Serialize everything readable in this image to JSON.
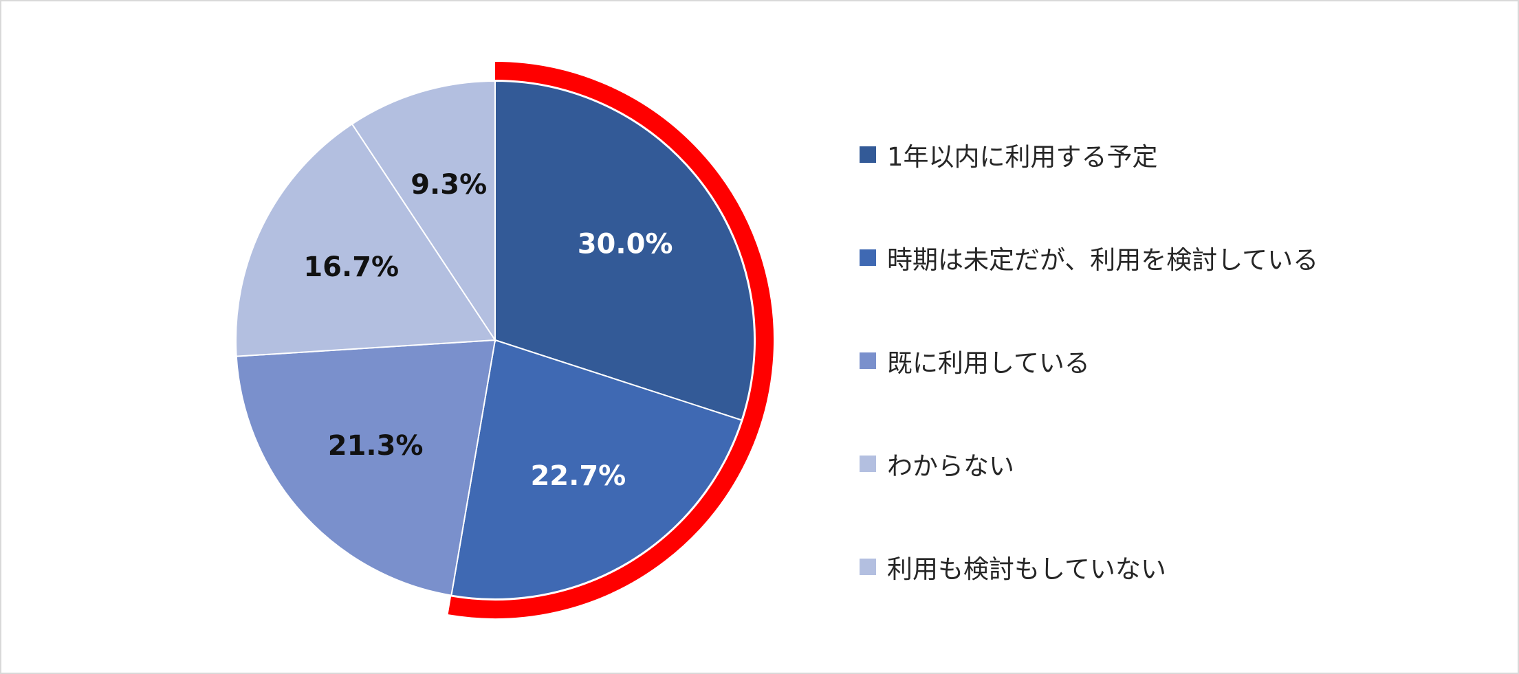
{
  "chart_data": {
    "type": "pie",
    "categories": [
      "1年以内に利用する予定",
      "時期は未定だが、利用を検討している",
      "既に利用している",
      "わからない",
      "利用も検討もしていない"
    ],
    "values": [
      30.0,
      22.7,
      21.3,
      16.7,
      9.3
    ],
    "labels": [
      "30.0%",
      "22.7%",
      "21.3%",
      "16.7%",
      "9.3%"
    ],
    "colors": [
      "#335A97",
      "#3F69B3",
      "#7A90CC",
      "#B3BFE0",
      "#B3BFE0"
    ],
    "label_colors": [
      "#ffffff",
      "#ffffff",
      "#111111",
      "#111111",
      "#111111"
    ],
    "highlight": {
      "slices": [
        0,
        1
      ],
      "color": "#FF0000"
    },
    "legend_position": "right"
  },
  "legend": {
    "items": [
      {
        "label": "1年以内に利用する予定",
        "color": "#335A97"
      },
      {
        "label": "時期は未定だが、利用を検討している",
        "color": "#3F69B3"
      },
      {
        "label": "既に利用している",
        "color": "#7A90CC"
      },
      {
        "label": "わからない",
        "color": "#B3BFE0"
      },
      {
        "label": "利用も検討もしていない",
        "color": "#B3BFE0"
      }
    ]
  }
}
